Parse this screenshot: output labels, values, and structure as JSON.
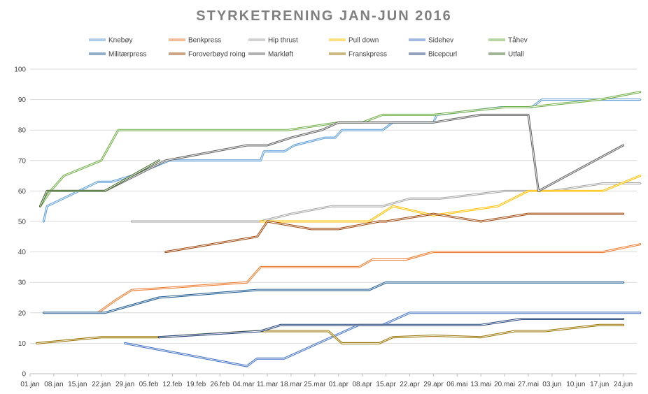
{
  "chart_data": {
    "type": "line",
    "title": "STYRKETRENING JAN-JUN 2016",
    "xlabel": "",
    "ylabel": "",
    "ylim": [
      0,
      100
    ],
    "yticks": [
      0,
      10,
      20,
      30,
      40,
      50,
      60,
      70,
      80,
      90,
      100
    ],
    "xlim": [
      "2016-01-01",
      "2016-06-28"
    ],
    "xticks": [
      {
        "date": "2016-01-01",
        "label": "01.jan"
      },
      {
        "date": "2016-01-08",
        "label": "08.jan"
      },
      {
        "date": "2016-01-15",
        "label": "15.jan"
      },
      {
        "date": "2016-01-22",
        "label": "22.jan"
      },
      {
        "date": "2016-01-29",
        "label": "29.jan"
      },
      {
        "date": "2016-02-05",
        "label": "05.feb"
      },
      {
        "date": "2016-02-12",
        "label": "12.feb"
      },
      {
        "date": "2016-02-19",
        "label": "19.feb"
      },
      {
        "date": "2016-02-26",
        "label": "26.feb"
      },
      {
        "date": "2016-03-04",
        "label": "04.mar"
      },
      {
        "date": "2016-03-11",
        "label": "11.mar"
      },
      {
        "date": "2016-03-18",
        "label": "18.mar"
      },
      {
        "date": "2016-03-25",
        "label": "25.mar"
      },
      {
        "date": "2016-04-01",
        "label": "01.apr"
      },
      {
        "date": "2016-04-08",
        "label": "08.apr"
      },
      {
        "date": "2016-04-15",
        "label": "15.apr"
      },
      {
        "date": "2016-04-22",
        "label": "22.apr"
      },
      {
        "date": "2016-04-29",
        "label": "29.apr"
      },
      {
        "date": "2016-05-06",
        "label": "06.mai"
      },
      {
        "date": "2016-05-13",
        "label": "13.mai"
      },
      {
        "date": "2016-05-20",
        "label": "20.mai"
      },
      {
        "date": "2016-05-27",
        "label": "27.mai"
      },
      {
        "date": "2016-06-03",
        "label": "03.jun"
      },
      {
        "date": "2016-06-10",
        "label": "10.jun"
      },
      {
        "date": "2016-06-17",
        "label": "17.jun"
      },
      {
        "date": "2016-06-24",
        "label": "24.jun"
      }
    ],
    "grid": true,
    "legend_position": "top",
    "series": [
      {
        "name": "Knebøy",
        "color": "#5b9bd5",
        "points": [
          [
            "2016-01-05",
            50
          ],
          [
            "2016-01-06",
            55
          ],
          [
            "2016-01-21",
            63
          ],
          [
            "2016-01-25",
            63
          ],
          [
            "2016-01-31",
            65
          ],
          [
            "2016-02-11",
            70
          ],
          [
            "2016-03-09",
            70
          ],
          [
            "2016-03-10",
            73
          ],
          [
            "2016-03-16",
            73
          ],
          [
            "2016-03-19",
            75
          ],
          [
            "2016-03-28",
            77.5
          ],
          [
            "2016-03-31",
            77.5
          ],
          [
            "2016-04-02",
            80
          ],
          [
            "2016-04-14",
            80
          ],
          [
            "2016-04-17",
            82.5
          ],
          [
            "2016-04-29",
            82.5
          ],
          [
            "2016-04-30",
            85
          ],
          [
            "2016-05-19",
            87.5
          ],
          [
            "2016-05-28",
            87.5
          ],
          [
            "2016-05-31",
            90
          ],
          [
            "2016-06-29",
            90
          ]
        ]
      },
      {
        "name": "Benkpress",
        "color": "#ed7d31",
        "points": [
          [
            "2016-01-21",
            20
          ],
          [
            "2016-01-26",
            24
          ],
          [
            "2016-01-31",
            27.5
          ],
          [
            "2016-02-08",
            28
          ],
          [
            "2016-03-05",
            30
          ],
          [
            "2016-03-09",
            35
          ],
          [
            "2016-04-07",
            35
          ],
          [
            "2016-04-11",
            37.5
          ],
          [
            "2016-04-21",
            37.5
          ],
          [
            "2016-04-29",
            40
          ],
          [
            "2016-06-18",
            40
          ],
          [
            "2016-06-29",
            42.5
          ]
        ]
      },
      {
        "name": "Hip thrust",
        "color": "#a5a5a5",
        "points": [
          [
            "2016-01-31",
            50
          ],
          [
            "2016-03-09",
            50
          ],
          [
            "2016-03-18",
            52.5
          ],
          [
            "2016-03-30",
            55
          ],
          [
            "2016-04-14",
            55
          ],
          [
            "2016-04-22",
            57.5
          ],
          [
            "2016-05-01",
            57.5
          ],
          [
            "2016-05-20",
            60
          ],
          [
            "2016-06-03",
            60
          ],
          [
            "2016-06-18",
            62.5
          ],
          [
            "2016-06-29",
            62.5
          ]
        ]
      },
      {
        "name": "Pull down",
        "color": "#ffc000",
        "points": [
          [
            "2016-03-09",
            50
          ],
          [
            "2016-04-10",
            50
          ],
          [
            "2016-04-17",
            55
          ],
          [
            "2016-04-29",
            52
          ],
          [
            "2016-05-18",
            55
          ],
          [
            "2016-05-27",
            60
          ],
          [
            "2016-06-18",
            60
          ],
          [
            "2016-06-29",
            65
          ]
        ]
      },
      {
        "name": "Sidehev",
        "color": "#4472c4",
        "points": [
          [
            "2016-01-29",
            10
          ],
          [
            "2016-03-05",
            2.5
          ],
          [
            "2016-03-08",
            5
          ],
          [
            "2016-03-16",
            5
          ],
          [
            "2016-04-07",
            16
          ],
          [
            "2016-04-14",
            16
          ],
          [
            "2016-04-22",
            20
          ],
          [
            "2016-06-29",
            20
          ]
        ]
      },
      {
        "name": "Tåhev",
        "color": "#70ad47",
        "points": [
          [
            "2016-01-04",
            55
          ],
          [
            "2016-01-07",
            60
          ],
          [
            "2016-01-11",
            65
          ],
          [
            "2016-01-22",
            70
          ],
          [
            "2016-01-27",
            80
          ],
          [
            "2016-03-17",
            80
          ],
          [
            "2016-04-01",
            82.5
          ],
          [
            "2016-04-08",
            82.5
          ],
          [
            "2016-04-14",
            85
          ],
          [
            "2016-04-29",
            85
          ],
          [
            "2016-05-20",
            87.5
          ],
          [
            "2016-05-27",
            87.5
          ],
          [
            "2016-06-17",
            90
          ],
          [
            "2016-06-29",
            92.5
          ]
        ]
      },
      {
        "name": "Militærpress",
        "color": "#255e91",
        "points": [
          [
            "2016-01-05",
            20
          ],
          [
            "2016-01-23",
            20
          ],
          [
            "2016-02-08",
            25
          ],
          [
            "2016-03-08",
            27.5
          ],
          [
            "2016-04-10",
            27.5
          ],
          [
            "2016-04-15",
            30
          ],
          [
            "2016-06-24",
            30
          ]
        ]
      },
      {
        "name": "Foroverbøyd roing",
        "color": "#9e480e",
        "points": [
          [
            "2016-02-10",
            40
          ],
          [
            "2016-03-08",
            45
          ],
          [
            "2016-03-11",
            50
          ],
          [
            "2016-03-24",
            47.5
          ],
          [
            "2016-04-01",
            47.5
          ],
          [
            "2016-04-13",
            50
          ],
          [
            "2016-04-15",
            50
          ],
          [
            "2016-04-29",
            52.5
          ],
          [
            "2016-05-13",
            50
          ],
          [
            "2016-05-27",
            52.5
          ],
          [
            "2016-06-24",
            52.5
          ]
        ]
      },
      {
        "name": "Markløft",
        "color": "#636363",
        "points": [
          [
            "2016-01-04",
            55
          ],
          [
            "2016-01-06",
            60
          ],
          [
            "2016-01-23",
            60
          ],
          [
            "2016-02-10",
            70
          ],
          [
            "2016-03-05",
            75
          ],
          [
            "2016-03-11",
            75
          ],
          [
            "2016-03-18",
            77.5
          ],
          [
            "2016-03-27",
            80
          ],
          [
            "2016-04-01",
            82.5
          ],
          [
            "2016-04-29",
            82.5
          ],
          [
            "2016-05-13",
            85
          ],
          [
            "2016-05-27",
            85
          ],
          [
            "2016-05-30",
            60
          ],
          [
            "2016-06-24",
            75
          ]
        ]
      },
      {
        "name": "Franskpress",
        "color": "#997300",
        "points": [
          [
            "2016-01-03",
            10
          ],
          [
            "2016-01-22",
            12
          ],
          [
            "2016-02-08",
            12
          ],
          [
            "2016-03-08",
            14
          ],
          [
            "2016-03-29",
            14
          ],
          [
            "2016-04-02",
            10
          ],
          [
            "2016-04-13",
            10
          ],
          [
            "2016-04-17",
            12
          ],
          [
            "2016-04-29",
            12.5
          ],
          [
            "2016-05-13",
            12
          ],
          [
            "2016-05-23",
            14
          ],
          [
            "2016-06-01",
            14
          ],
          [
            "2016-06-17",
            16
          ],
          [
            "2016-06-24",
            16
          ]
        ]
      },
      {
        "name": "Bicepcurl",
        "color": "#264478",
        "points": [
          [
            "2016-02-08",
            12
          ],
          [
            "2016-03-09",
            14
          ],
          [
            "2016-03-15",
            16
          ],
          [
            "2016-05-13",
            16
          ],
          [
            "2016-05-25",
            18
          ],
          [
            "2016-06-24",
            18
          ]
        ]
      },
      {
        "name": "Utfall",
        "color": "#43682b",
        "points": [
          [
            "2016-01-04",
            55
          ],
          [
            "2016-01-06",
            60
          ],
          [
            "2016-01-23",
            60
          ],
          [
            "2016-02-08",
            70
          ]
        ]
      }
    ]
  }
}
